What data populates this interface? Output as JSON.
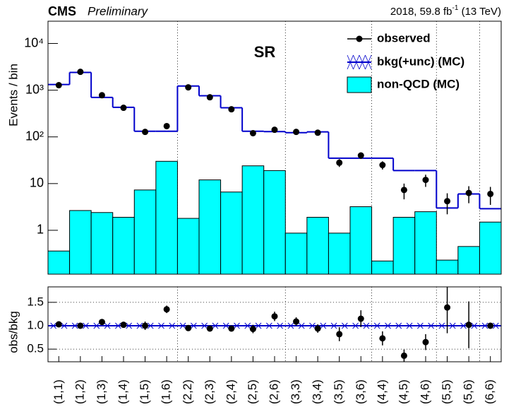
{
  "chart_data": [
    {
      "type": "step",
      "log_scale": true,
      "experiment": "CMS",
      "status": "Preliminary",
      "lumi": "2018, 59.8 fb",
      "lumi_exponent": "-1",
      "energy": "(13 TeV)",
      "region": "SR",
      "ylabel": "Events / bin",
      "legend": "upper right",
      "categories": [
        "(1,1)",
        "(1,2)",
        "(1,3)",
        "(1,4)",
        "(1,5)",
        "(1,6)",
        "(2,2)",
        "(2,3)",
        "(2,4)",
        "(2,5)",
        "(2,6)",
        "(3,3)",
        "(3,4)",
        "(3,5)",
        "(3,6)",
        "(4,4)",
        "(4,5)",
        "(4,6)",
        "(5,5)",
        "(5,6)",
        "(6,6)"
      ],
      "ylim": [
        0.115,
        30000
      ],
      "yticks": [
        1,
        10,
        {
          "value": 100,
          "label": "10²"
        },
        {
          "value": 1000,
          "label": "10³"
        },
        {
          "value": 10000,
          "label": "10⁴"
        }
      ],
      "series": [
        {
          "name": "non-QCD (MC)",
          "color": "#00ffff",
          "values": [
            0.36,
            2.65,
            2.4,
            1.9,
            7.3,
            30,
            1.8,
            12,
            6.6,
            24,
            19,
            0.87,
            1.9,
            0.87,
            3.2,
            0.22,
            1.9,
            2.5,
            0.23,
            0.45,
            1.5
          ]
        },
        {
          "name": "bkg(+unc) (MC)",
          "color": "#0000cc",
          "values": [
            1320,
            2400,
            700,
            430,
            132,
            132,
            1230,
            760,
            420,
            132,
            130,
            123,
            128,
            35,
            35,
            35,
            19,
            19,
            3.0,
            6,
            2.9
          ]
        },
        {
          "name": "observed",
          "color": "#000000",
          "values": [
            1280,
            2470,
            780,
            420,
            128,
            170,
            1150,
            705,
            390,
            120,
            142,
            128,
            123,
            28,
            40,
            25,
            7.3,
            12,
            4.2,
            6.3,
            6
          ],
          "errors": [
            36,
            50,
            28,
            20,
            11,
            13,
            34,
            27,
            20,
            11,
            12,
            11,
            11,
            5.3,
            6.3,
            5,
            2.7,
            3.5,
            2,
            2.5,
            2.5
          ]
        }
      ]
    },
    {
      "type": "ratio",
      "ylabel": "obs/bkg",
      "ylim": [
        0.23,
        1.83
      ],
      "yticks": [
        0.5,
        {
          "value": 1,
          "label": "1.0"
        },
        1.5
      ],
      "values": [
        1.03,
        1.0,
        1.08,
        1.02,
        1.0,
        1.35,
        0.95,
        0.94,
        0.94,
        0.93,
        1.2,
        1.09,
        0.94,
        0.82,
        1.15,
        0.73,
        0.36,
        0.65,
        1.39,
        1.02,
        1.0
      ],
      "errors": [
        0.03,
        0.02,
        0.04,
        0.05,
        0.09,
        0.08,
        0.03,
        0.04,
        0.05,
        0.09,
        0.1,
        0.09,
        0.09,
        0.15,
        0.18,
        0.15,
        0.13,
        0.17,
        0.55,
        0.5,
        0.05
      ],
      "color": "#0000cc"
    }
  ]
}
